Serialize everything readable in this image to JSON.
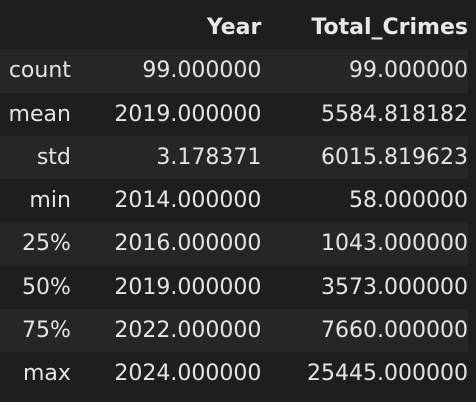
{
  "table": {
    "headers": [
      "",
      "Year",
      "Total_Crimes"
    ],
    "rows": [
      {
        "label": "count",
        "year": "99.000000",
        "total": "99.000000"
      },
      {
        "label": "mean",
        "year": "2019.000000",
        "total": "5584.818182"
      },
      {
        "label": "std",
        "year": "3.178371",
        "total": "6015.819623"
      },
      {
        "label": "min",
        "year": "2014.000000",
        "total": "58.000000"
      },
      {
        "label": "25%",
        "year": "2016.000000",
        "total": "1043.000000"
      },
      {
        "label": "50%",
        "year": "2019.000000",
        "total": "3573.000000"
      },
      {
        "label": "75%",
        "year": "2022.000000",
        "total": "7660.000000"
      },
      {
        "label": "max",
        "year": "2024.000000",
        "total": "25445.000000"
      }
    ]
  },
  "colors": {
    "background": "#1e1e1e",
    "row_stripe": "#262626",
    "text": "#e4e4e4"
  }
}
